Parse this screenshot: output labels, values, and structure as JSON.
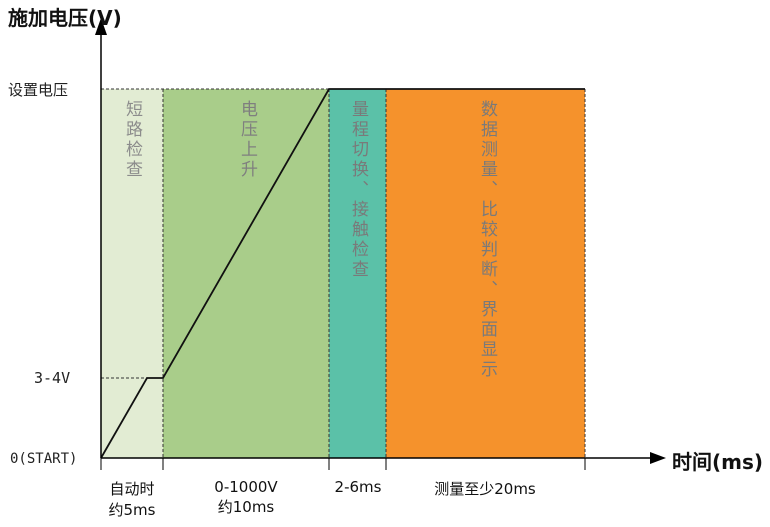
{
  "axes": {
    "y_title": "施加电压(V)",
    "x_title": "时间(ms)",
    "y_labels": {
      "top": "设置电压",
      "mid": "3-4V",
      "zero": "0(START)"
    }
  },
  "phases": [
    {
      "name": "短路检查",
      "color": "#e2ecd3",
      "text_color": "#8c8c8c"
    },
    {
      "name": "电压上升",
      "color": "#a9cd8a",
      "text_color": "#7f7f7f"
    },
    {
      "name": "量程切换、接触检查",
      "color": "#5bc1a8",
      "text_color": "#7a7a7a"
    },
    {
      "name": "数据测量、比较判断、界面显示",
      "color": "#f5922c",
      "text_color": "#7a7a7a"
    }
  ],
  "x_segments": [
    {
      "line1": "自动时",
      "line2": "约5ms"
    },
    {
      "line1": "0-1000V",
      "line2": "约10ms"
    },
    {
      "line1": "2-6ms",
      "line2": ""
    },
    {
      "line1": "测量至少20ms",
      "line2": ""
    }
  ]
}
